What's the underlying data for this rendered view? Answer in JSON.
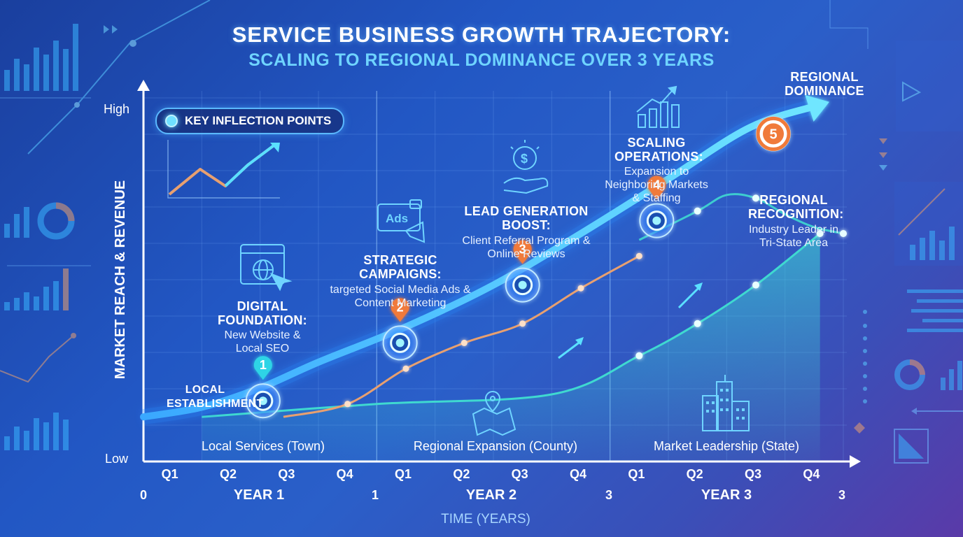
{
  "title": "SERVICE BUSINESS GROWTH TRAJECTORY:",
  "subtitle": "SCALING TO REGIONAL DOMINANCE OVER 3 YEARS",
  "legend_pill": "KEY INFLECTION POINTS",
  "colors": {
    "main_line": "#4fc3ff",
    "orange_line": "#e8a070",
    "teal_line": "#3fd9d0",
    "marker_orange": "#f07a3a",
    "marker_teal": "#2fd4e6"
  },
  "chart_data": {
    "type": "line",
    "ylabel": "MARKET REACH & REVENUE",
    "y_ticks": [
      "Low",
      "High"
    ],
    "xlabel": "TIME (YEARS)",
    "quarter_labels": [
      "Q1",
      "Q2",
      "Q3",
      "Q4",
      "Q1",
      "Q2",
      "Q3",
      "Q4",
      "Q1",
      "Q2",
      "Q3",
      "Q4"
    ],
    "year_markers": [
      "0",
      "1",
      "3",
      "3"
    ],
    "year_labels": [
      "YEAR 1",
      "YEAR 2",
      "YEAR 3"
    ],
    "phase_labels": [
      "Local Services (Town)",
      "Regional Expansion (County)",
      "Market Leadership (State)"
    ],
    "main_series": {
      "x": [
        0,
        1,
        2,
        3,
        4.5,
        6,
        7.5,
        9,
        10.4,
        11.6
      ],
      "y": [
        0.03,
        0.06,
        0.12,
        0.2,
        0.31,
        0.44,
        0.6,
        0.77,
        0.93,
        1.0
      ]
    },
    "orange_series": {
      "x": [
        2.4,
        3.5,
        4.5,
        5.5,
        6.5,
        7.5,
        8.5
      ],
      "y": [
        0.03,
        0.07,
        0.18,
        0.26,
        0.32,
        0.43,
        0.53
      ]
    },
    "teal_series": {
      "x": [
        8.5,
        9.5,
        10,
        10.5,
        11,
        11.5,
        12
      ],
      "y": [
        0.58,
        0.67,
        0.72,
        0.71,
        0.66,
        0.62,
        0.6
      ]
    },
    "lower_series": {
      "x": [
        1,
        4,
        7,
        8.5,
        9.5,
        10.5,
        11.6
      ],
      "y": [
        0.03,
        0.07,
        0.1,
        0.22,
        0.32,
        0.44,
        0.6
      ]
    },
    "inflection_points": [
      {
        "number": "1",
        "x": 2.05,
        "y": 0.08,
        "marker": "teal"
      },
      {
        "number": "2",
        "x": 4.4,
        "y": 0.26,
        "marker": "orange"
      },
      {
        "number": "3",
        "x": 6.5,
        "y": 0.44,
        "marker": "orange"
      },
      {
        "number": "4",
        "x": 8.8,
        "y": 0.64,
        "marker": "orange"
      },
      {
        "number": "5",
        "x": 10.8,
        "y": 0.91,
        "marker": "orange"
      }
    ]
  },
  "annotations": {
    "local": {
      "title": "LOCAL ESTABLISHMENT"
    },
    "digital": {
      "title": "DIGITAL FOUNDATION:",
      "desc": "New Website & Local SEO"
    },
    "strategic": {
      "title": "STRATEGIC CAMPAIGNS:",
      "desc": "targeted Social Media Ads & Content Marketing"
    },
    "leadgen": {
      "title": "LEAD GENERATION BOOST:",
      "desc": "Client Referral Program & Online Reviews"
    },
    "scaling": {
      "title": "SCALING OPERATIONS:",
      "desc": "Expansion to Neighboring Markets & Staffing"
    },
    "dominance": {
      "title": "REGIONAL DOMINANCE"
    },
    "recognition": {
      "title": "REGIONAL RECOGNITION:",
      "desc": "Industry Leader in Tri-State Area"
    }
  },
  "icons": {
    "ads_label": "Ads",
    "dollar_label": "$"
  }
}
